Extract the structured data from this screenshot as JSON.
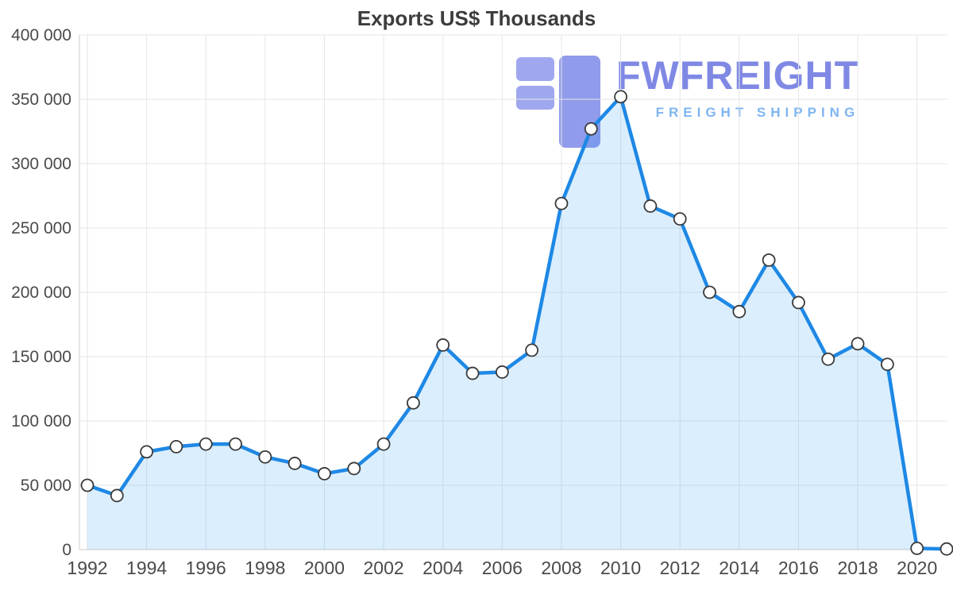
{
  "chart_data": {
    "type": "area",
    "title": "Exports US$ Thousands",
    "xlabel": "",
    "ylabel": "",
    "x": [
      1992,
      1993,
      1994,
      1995,
      1996,
      1997,
      1998,
      1999,
      2000,
      2001,
      2002,
      2003,
      2004,
      2005,
      2006,
      2007,
      2008,
      2009,
      2010,
      2011,
      2012,
      2013,
      2014,
      2015,
      2016,
      2017,
      2018,
      2019,
      2020,
      2021
    ],
    "values": [
      50000,
      42000,
      76000,
      80000,
      82000,
      82000,
      72000,
      67000,
      59000,
      63000,
      82000,
      114000,
      159000,
      137000,
      138000,
      155000,
      269000,
      327000,
      352000,
      267000,
      257000,
      200000,
      185000,
      225000,
      192000,
      148000,
      160000,
      144000,
      1000,
      500
    ],
    "ylim": [
      0,
      400000
    ],
    "y_ticks": [
      0,
      50000,
      100000,
      150000,
      200000,
      250000,
      300000,
      350000,
      400000
    ],
    "y_tick_labels": [
      "0",
      "50 000",
      "100 000",
      "150 000",
      "200 000",
      "250 000",
      "300 000",
      "350 000",
      "400 000"
    ],
    "x_tick_labels": [
      "1992",
      "1994",
      "1996",
      "1998",
      "2000",
      "2002",
      "2004",
      "2006",
      "2008",
      "2010",
      "2012",
      "2014",
      "2016",
      "2018",
      "2020"
    ],
    "grid": true,
    "legend_position": "none",
    "marker": "circle"
  },
  "watermark": {
    "brand": "FWFREIGHT",
    "tagline": "FREIGHT SHIPPING"
  },
  "colors": {
    "line": "#1e88e5",
    "area": "rgba(33,150,243,0.16)",
    "marker_fill": "#ffffff",
    "marker_stroke": "#3a3a3a",
    "grid": "#e6e6e6",
    "axis": "#cccccc",
    "tick_text": "#4a4a4a",
    "title_text": "#3c3c3c",
    "watermark_brand": "#7983e3",
    "watermark_tagline": "#79b2f2",
    "watermark_logo_light": "#9aa4ee",
    "watermark_logo_dark": "#8b96ea"
  }
}
